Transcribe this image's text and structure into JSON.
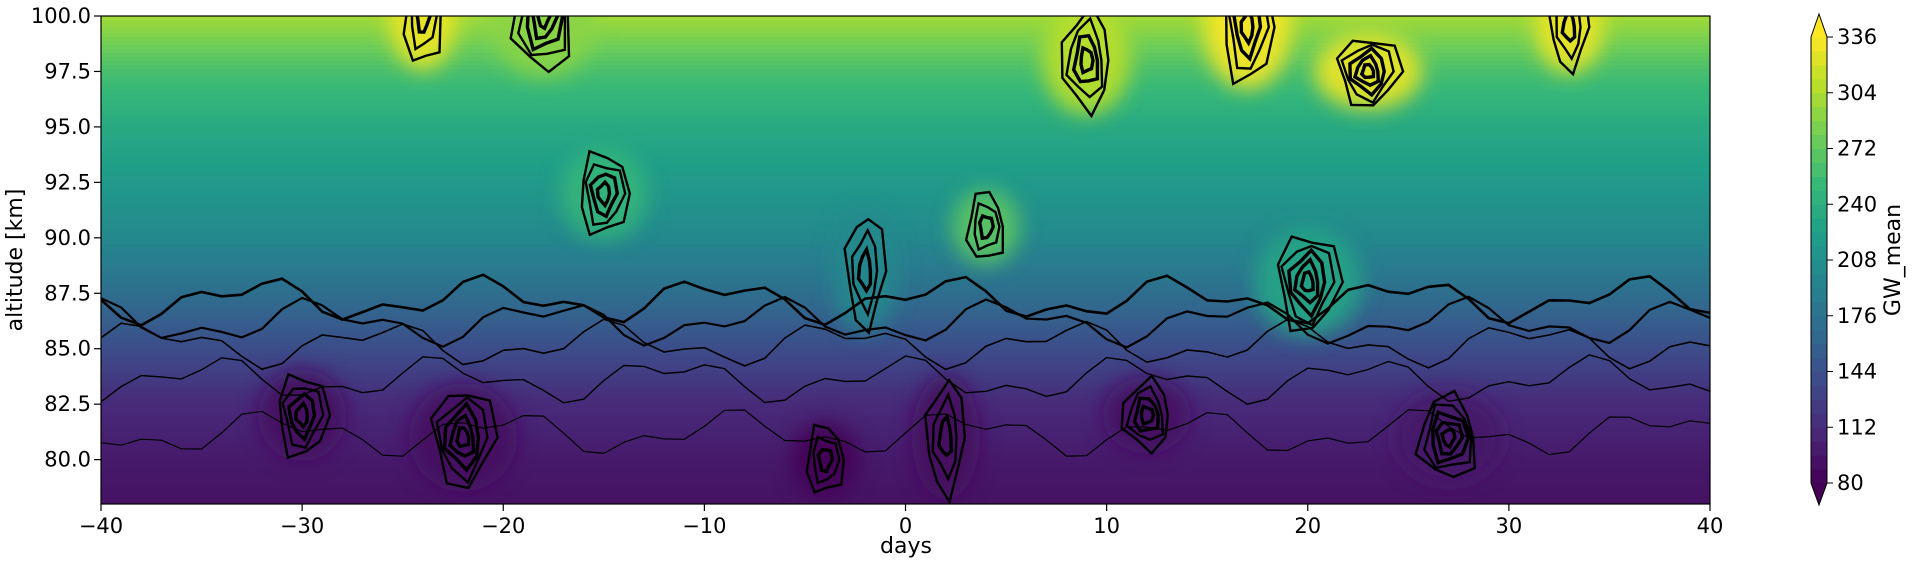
{
  "chart_data": {
    "type": "contourf",
    "title": "",
    "xlabel": "days",
    "ylabel": "altitude [km]",
    "colorbar_label": "GW_mean",
    "xlim": [
      -40,
      40
    ],
    "ylim": [
      78,
      100
    ],
    "xticks": [
      -40,
      -30,
      -20,
      -10,
      0,
      10,
      20,
      30,
      40
    ],
    "xtick_labels": [
      "−40",
      "−30",
      "−20",
      "−10",
      "0",
      "10",
      "20",
      "30",
      "40"
    ],
    "yticks": [
      80,
      82.5,
      85,
      87.5,
      90,
      92.5,
      95,
      97.5,
      100
    ],
    "ytick_labels": [
      "80.0",
      "82.5",
      "85.0",
      "87.5",
      "90.0",
      "92.5",
      "95.0",
      "97.5",
      "100.0"
    ],
    "colorbar_range": [
      80,
      336
    ],
    "colorbar_ticks": [
      80,
      112,
      144,
      176,
      208,
      240,
      272,
      304,
      336
    ],
    "colorbar_extend": "both",
    "colormap": [
      "#440154",
      "#482878",
      "#3e4989",
      "#31688e",
      "#26828e",
      "#1f9e89",
      "#35b779",
      "#6ece58",
      "#b5de2b",
      "#fde725"
    ],
    "contour_line_color": "#000000",
    "grid": false,
    "gw_mean_profile": {
      "altitude_km": [
        78,
        80,
        82.5,
        85,
        87.5,
        90,
        92.5,
        95,
        97.5,
        100
      ],
      "value": [
        92,
        98,
        110,
        140,
        172,
        200,
        218,
        235,
        260,
        300
      ]
    },
    "features": [
      {
        "day": -4,
        "alt": 80,
        "value": 80
      },
      {
        "day": -30,
        "alt": 82,
        "value": 90
      },
      {
        "day": -22,
        "alt": 81,
        "value": 90
      },
      {
        "day": 2,
        "alt": 81,
        "value": 88
      },
      {
        "day": 12,
        "alt": 82,
        "value": 92
      },
      {
        "day": 27,
        "alt": 81,
        "value": 96
      },
      {
        "day": -24,
        "alt": 100,
        "value": 330
      },
      {
        "day": 17,
        "alt": 99.5,
        "value": 335
      },
      {
        "day": 23,
        "alt": 97.5,
        "value": 330
      },
      {
        "day": 33,
        "alt": 99.5,
        "value": 330
      },
      {
        "day": 9,
        "alt": 98,
        "value": 310
      },
      {
        "day": -18,
        "alt": 100,
        "value": 290
      },
      {
        "day": 4,
        "alt": 90.5,
        "value": 270
      },
      {
        "day": -15,
        "alt": 92,
        "value": 250
      },
      {
        "day": 20,
        "alt": 88,
        "value": 230
      },
      {
        "day": -2,
        "alt": 88.5,
        "value": 200
      }
    ]
  }
}
